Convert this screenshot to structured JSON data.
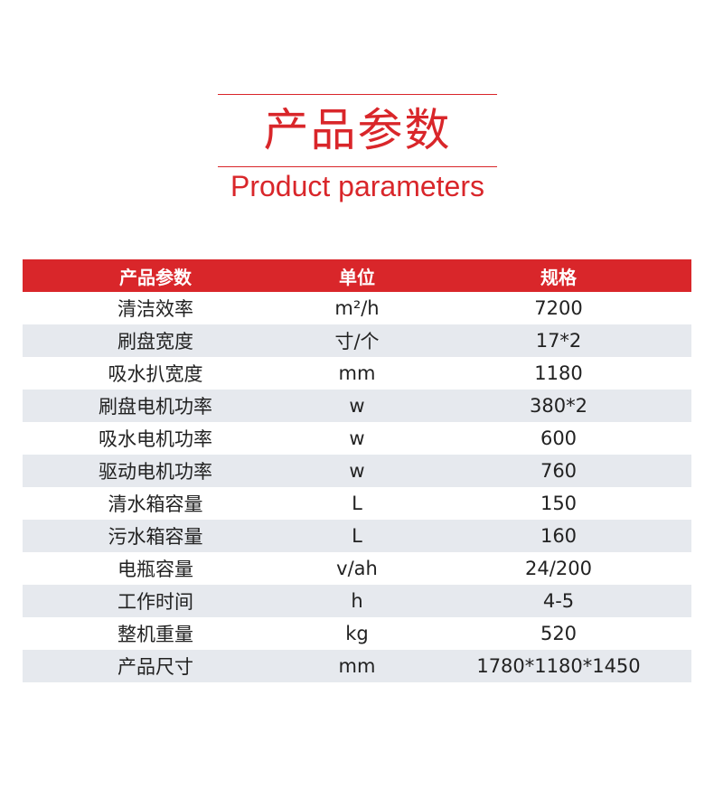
{
  "heading": {
    "title_cn": "产品参数",
    "title_en": "Product parameters",
    "accent": "#d9262a"
  },
  "table": {
    "headers": [
      "产品参数",
      "单位",
      "规格"
    ],
    "rows": [
      [
        "清洁效率",
        "m²/h",
        "7200"
      ],
      [
        "刷盘宽度",
        "寸/个",
        "17*2"
      ],
      [
        "吸水扒宽度",
        "mm",
        "1180"
      ],
      [
        "刷盘电机功率",
        "w",
        "380*2"
      ],
      [
        "吸水电机功率",
        "w",
        "600"
      ],
      [
        "驱动电机功率",
        "w",
        "760"
      ],
      [
        "清水箱容量",
        "L",
        "150"
      ],
      [
        "污水箱容量",
        "L",
        "160"
      ],
      [
        "电瓶容量",
        "v/ah",
        "24/200"
      ],
      [
        "工作时间",
        "h",
        "4-5"
      ],
      [
        "整机重量",
        "kg",
        "520"
      ],
      [
        "产品尺寸",
        "mm",
        "1780*1180*1450"
      ]
    ]
  }
}
